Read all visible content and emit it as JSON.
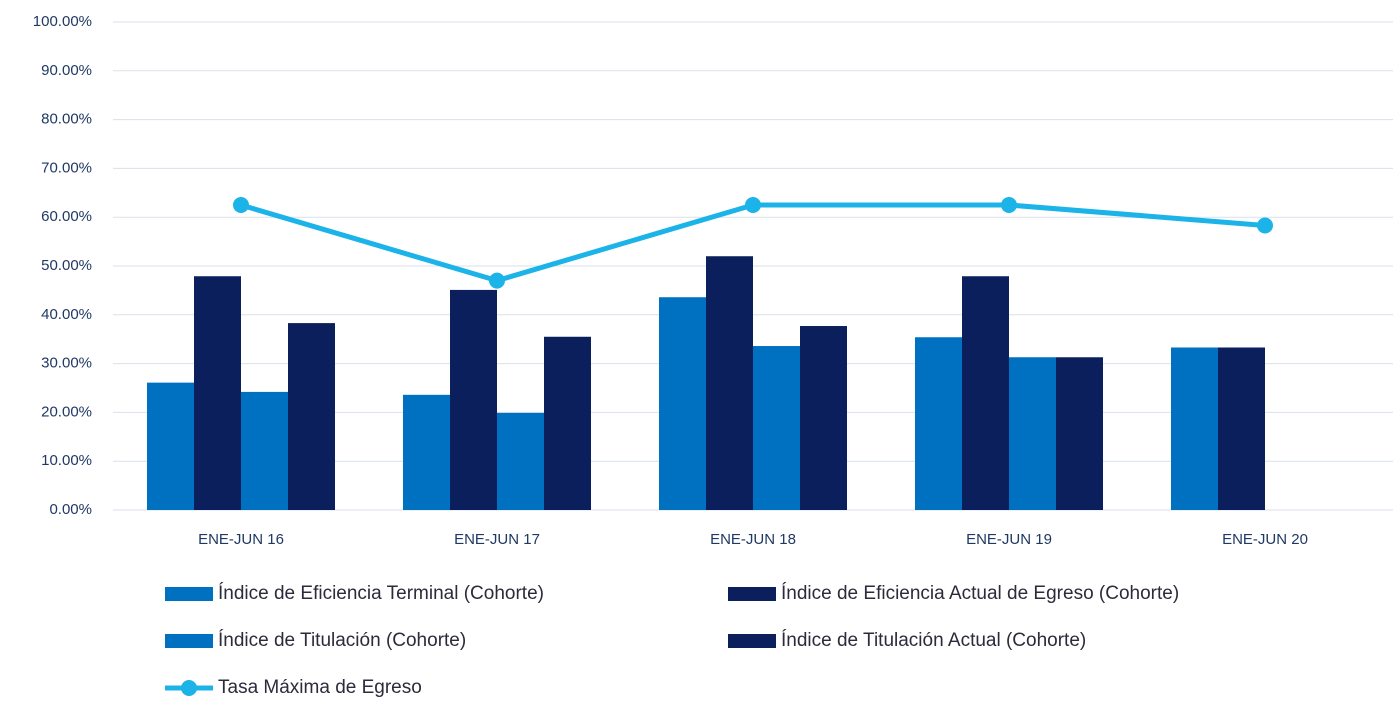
{
  "chart_data": {
    "type": "bar",
    "categories": [
      "ENE-JUN 16",
      "ENE-JUN 17",
      "ENE-JUN 18",
      "ENE-JUN 19",
      "ENE-JUN 20"
    ],
    "series": [
      {
        "name": "Índice de Eficiencia Terminal (Cohorte)",
        "color": "#0070c0",
        "values": [
          26.1,
          23.6,
          43.6,
          35.4,
          33.3
        ]
      },
      {
        "name": "Índice de Eficiencia Actual de Egreso (Cohorte)",
        "color": "#0b1f5c",
        "values": [
          47.9,
          45.1,
          52.0,
          47.9,
          33.3
        ]
      },
      {
        "name": "Índice de Titulación (Cohorte)",
        "color": "#0070c0",
        "values": [
          24.2,
          19.9,
          33.6,
          31.3,
          null
        ]
      },
      {
        "name": "Índice de Titulación Actual (Cohorte)",
        "color": "#0b1f5c",
        "values": [
          38.3,
          35.5,
          37.7,
          31.3,
          null
        ]
      },
      {
        "name": "Tasa Máxima de Egreso",
        "color": "#1cb3e8",
        "type": "line",
        "values": [
          62.5,
          47.0,
          62.5,
          62.5,
          58.3
        ]
      }
    ],
    "ylim": [
      0,
      100
    ],
    "yticks": [
      {
        "value": 0,
        "label": "0.00%"
      },
      {
        "value": 10,
        "label": "10.00%"
      },
      {
        "value": 20,
        "label": "20.00%"
      },
      {
        "value": 30,
        "label": "30.00%"
      },
      {
        "value": 40,
        "label": "40.00%"
      },
      {
        "value": 50,
        "label": "50.00%"
      },
      {
        "value": 60,
        "label": "60.00%"
      },
      {
        "value": 70,
        "label": "70.00%"
      },
      {
        "value": 80,
        "label": "80.00%"
      },
      {
        "value": 90,
        "label": "90.00%"
      },
      {
        "value": 100,
        "label": "100.00%"
      }
    ],
    "grid": true,
    "legend": "bottom"
  }
}
